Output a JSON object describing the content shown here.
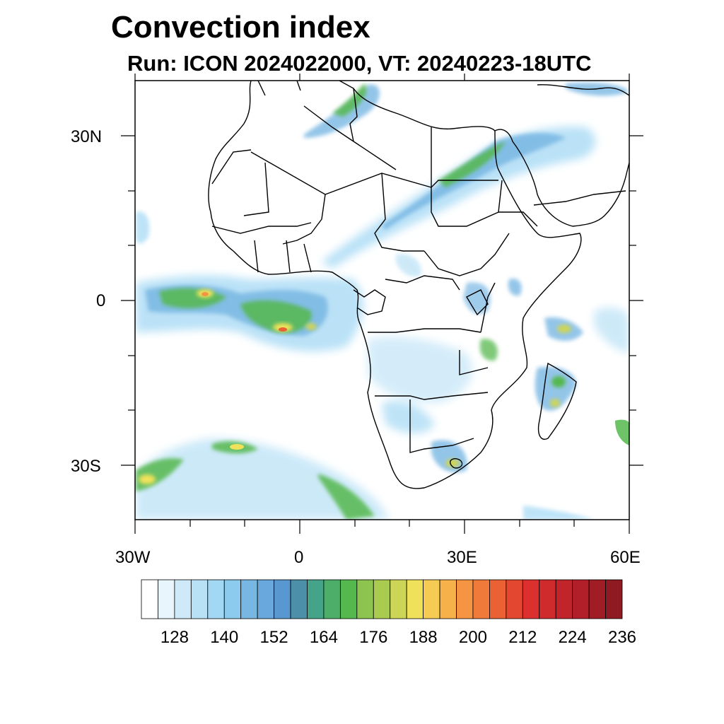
{
  "title": "Convection index",
  "subtitle": "Run: ICON 2024022000,  VT: 20240223-18UTC",
  "map": {
    "lon_range": [
      -30,
      60
    ],
    "lat_range": [
      -40,
      40
    ],
    "x_ticks": [
      "30W",
      "0",
      "30E",
      "60E"
    ],
    "y_ticks": [
      "30N",
      "0",
      "30S"
    ]
  },
  "colorbar": {
    "labels": [
      "128",
      "140",
      "152",
      "164",
      "176",
      "188",
      "200",
      "212",
      "224",
      "236"
    ],
    "colors": [
      "#ffffff",
      "#e8f5fc",
      "#cfe9f8",
      "#b9e1f6",
      "#a3d8f4",
      "#8dcbee",
      "#79b7e3",
      "#68a8dc",
      "#5897cf",
      "#4b8fa8",
      "#45a38a",
      "#4cae68",
      "#55b84e",
      "#8cc44f",
      "#a9cc50",
      "#cdd556",
      "#efe25a",
      "#f6cb53",
      "#f7b14a",
      "#f59443",
      "#ef7a3a",
      "#ea6134",
      "#e3472f",
      "#db302d",
      "#cf2a2c",
      "#c2242b",
      "#b31f28",
      "#a11d26",
      "#8f1a22"
    ]
  },
  "chart_data": {
    "type": "heatmap",
    "title": "Convection index",
    "subtitle": "Run: ICON 2024022000,  VT: 20240223-18UTC",
    "projection": "cylindrical equidistant",
    "lon_min": -30,
    "lon_max": 60,
    "lat_min": -40,
    "lat_max": 40,
    "x_tick_labels": [
      "30W",
      "0",
      "30E",
      "60E"
    ],
    "y_tick_labels": [
      "30N",
      "0",
      "30S"
    ],
    "colorbar_levels": [
      128,
      140,
      152,
      164,
      176,
      188,
      200,
      212,
      224,
      236
    ],
    "features": [
      {
        "name": "equatorial-atlantic-band",
        "peak_lat": -4,
        "lon_range": [
          -29,
          5
        ]
      },
      {
        "name": "sahara-red-sea-band",
        "lon_range": [
          5,
          50
        ],
        "lat_range": [
          12,
          32
        ]
      },
      {
        "name": "south-atlantic-band",
        "lon_range": [
          -30,
          20
        ],
        "lat_range": [
          -40,
          -26
        ]
      },
      {
        "name": "madagascar-cells",
        "lon": 49,
        "lat": -17
      },
      {
        "name": "indian-ocean-cells",
        "lon": 48,
        "lat": -5
      }
    ]
  }
}
